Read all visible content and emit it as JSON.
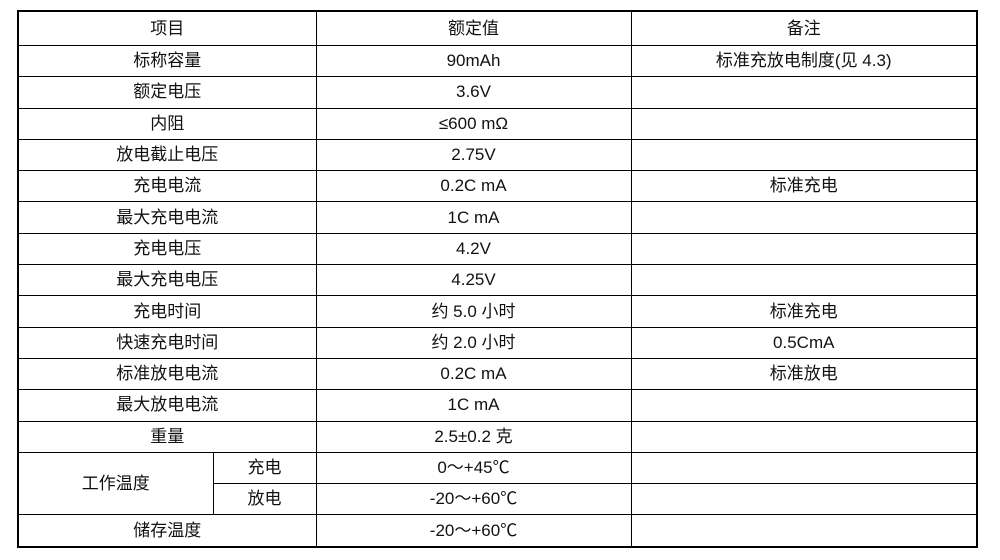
{
  "headers": [
    "项目",
    "额定值",
    "备注"
  ],
  "rows": [
    {
      "item": "标称容量",
      "value": "90mAh",
      "note": "标准充放电制度(见 4.3)"
    },
    {
      "item": "额定电压",
      "value": "3.6V",
      "note": ""
    },
    {
      "item": "内阻",
      "value": "≤600 mΩ",
      "note": ""
    },
    {
      "item": "放电截止电压",
      "value": "2.75V",
      "note": ""
    },
    {
      "item": "充电电流",
      "value": "0.2C mA",
      "note": "标准充电"
    },
    {
      "item": "最大充电电流",
      "value": "1C mA",
      "note": ""
    },
    {
      "item": "充电电压",
      "value": "4.2V",
      "note": ""
    },
    {
      "item": "最大充电电压",
      "value": "4.25V",
      "note": ""
    },
    {
      "item": "充电时间",
      "value": "约 5.0 小时",
      "note": "标准充电"
    },
    {
      "item": "快速充电时间",
      "value": "约 2.0 小时",
      "note": "0.5CmA"
    },
    {
      "item": "标准放电电流",
      "value": "0.2C mA",
      "note": "标准放电"
    },
    {
      "item": "最大放电电流",
      "value": "1C mA",
      "note": ""
    },
    {
      "item": "重量",
      "value": "2.5±0.2  克",
      "note": ""
    }
  ],
  "operating_temp": {
    "item": "工作温度",
    "charge": {
      "label": "充电",
      "value": "0～+45℃",
      "note": ""
    },
    "discharge": {
      "label": "放电",
      "value": "-20～+60℃",
      "note": ""
    }
  },
  "storage_temp": {
    "item": "储存温度",
    "value": "-20～+60℃",
    "note": ""
  }
}
